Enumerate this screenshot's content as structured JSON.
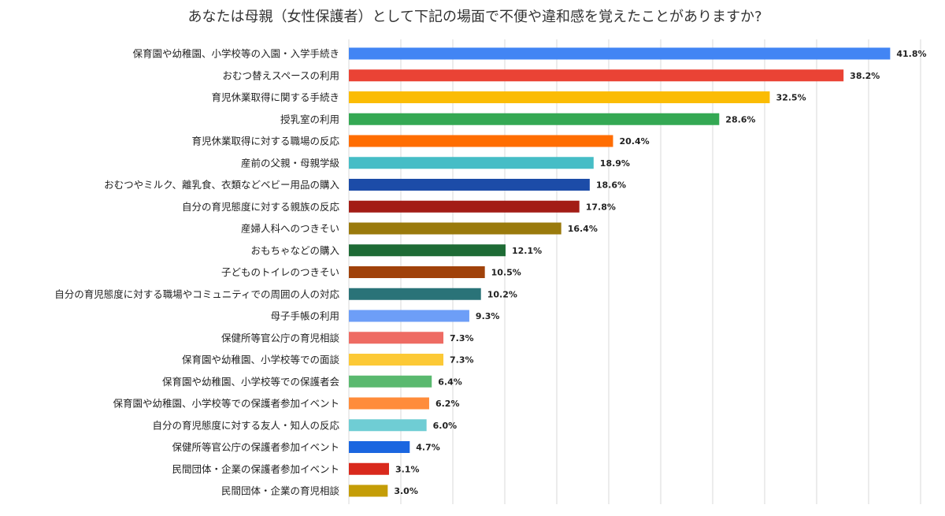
{
  "chart_data": {
    "type": "bar",
    "orientation": "horizontal",
    "title": "あなたは母親（女性保護者）として下記の場面で不便や違和感を覚えたことがありますか?",
    "xlabel": "",
    "ylabel": "",
    "xlim": [
      0,
      45
    ],
    "grid": true,
    "value_suffix": "%",
    "categories": [
      "保育園や幼稚園、小学校等の入園・入学手続き",
      "おむつ替えスペースの利用",
      "育児休業取得に関する手続き",
      "授乳室の利用",
      "育児休業取得に対する職場の反応",
      "産前の父親・母親学級",
      "おむつやミルク、離乳食、衣類などベビー用品の購入",
      "自分の育児態度に対する親族の反応",
      "産婦人科へのつきそい",
      "おもちゃなどの購入",
      "子どものトイレのつきそい",
      "自分の育児態度に対する職場やコミュニティでの周囲の人の対応",
      "母子手帳の利用",
      "保健所等官公庁の育児相談",
      "保育園や幼稚園、小学校等での面談",
      "保育園や幼稚園、小学校等での保護者会",
      "保育園や幼稚園、小学校等での保護者参加イベント",
      "自分の育児態度に対する友人・知人の反応",
      "保健所等官公庁の保護者参加イベント",
      "民間団体・企業の保護者参加イベント",
      "民間団体・企業の育児相談"
    ],
    "values": [
      41.8,
      38.2,
      32.5,
      28.6,
      20.4,
      18.9,
      18.6,
      17.8,
      16.4,
      12.1,
      10.5,
      10.2,
      9.3,
      7.3,
      7.3,
      6.4,
      6.2,
      6.0,
      4.7,
      3.1,
      3.0
    ],
    "value_labels": [
      "41.8%",
      "38.2%",
      "32.5%",
      "28.6%",
      "20.4%",
      "18.9%",
      "18.6%",
      "17.8%",
      "16.4%",
      "12.1%",
      "10.5%",
      "10.2%",
      "9.3%",
      "7.3%",
      "7.3%",
      "6.4%",
      "6.2%",
      "6.0%",
      "4.7%",
      "3.1%",
      "3.0%"
    ],
    "colors": [
      "#4285f4",
      "#ea4335",
      "#fbbc04",
      "#34a853",
      "#ff6d01",
      "#46bdc6",
      "#1c4ca8",
      "#a31d16",
      "#9a7a0c",
      "#1e6b35",
      "#a0420a",
      "#2a7378",
      "#6d9ef7",
      "#ee6b63",
      "#fcc936",
      "#5ab96f",
      "#ff8c3b",
      "#6fcdd4",
      "#1a66e0",
      "#d9291c",
      "#c49d07"
    ]
  }
}
